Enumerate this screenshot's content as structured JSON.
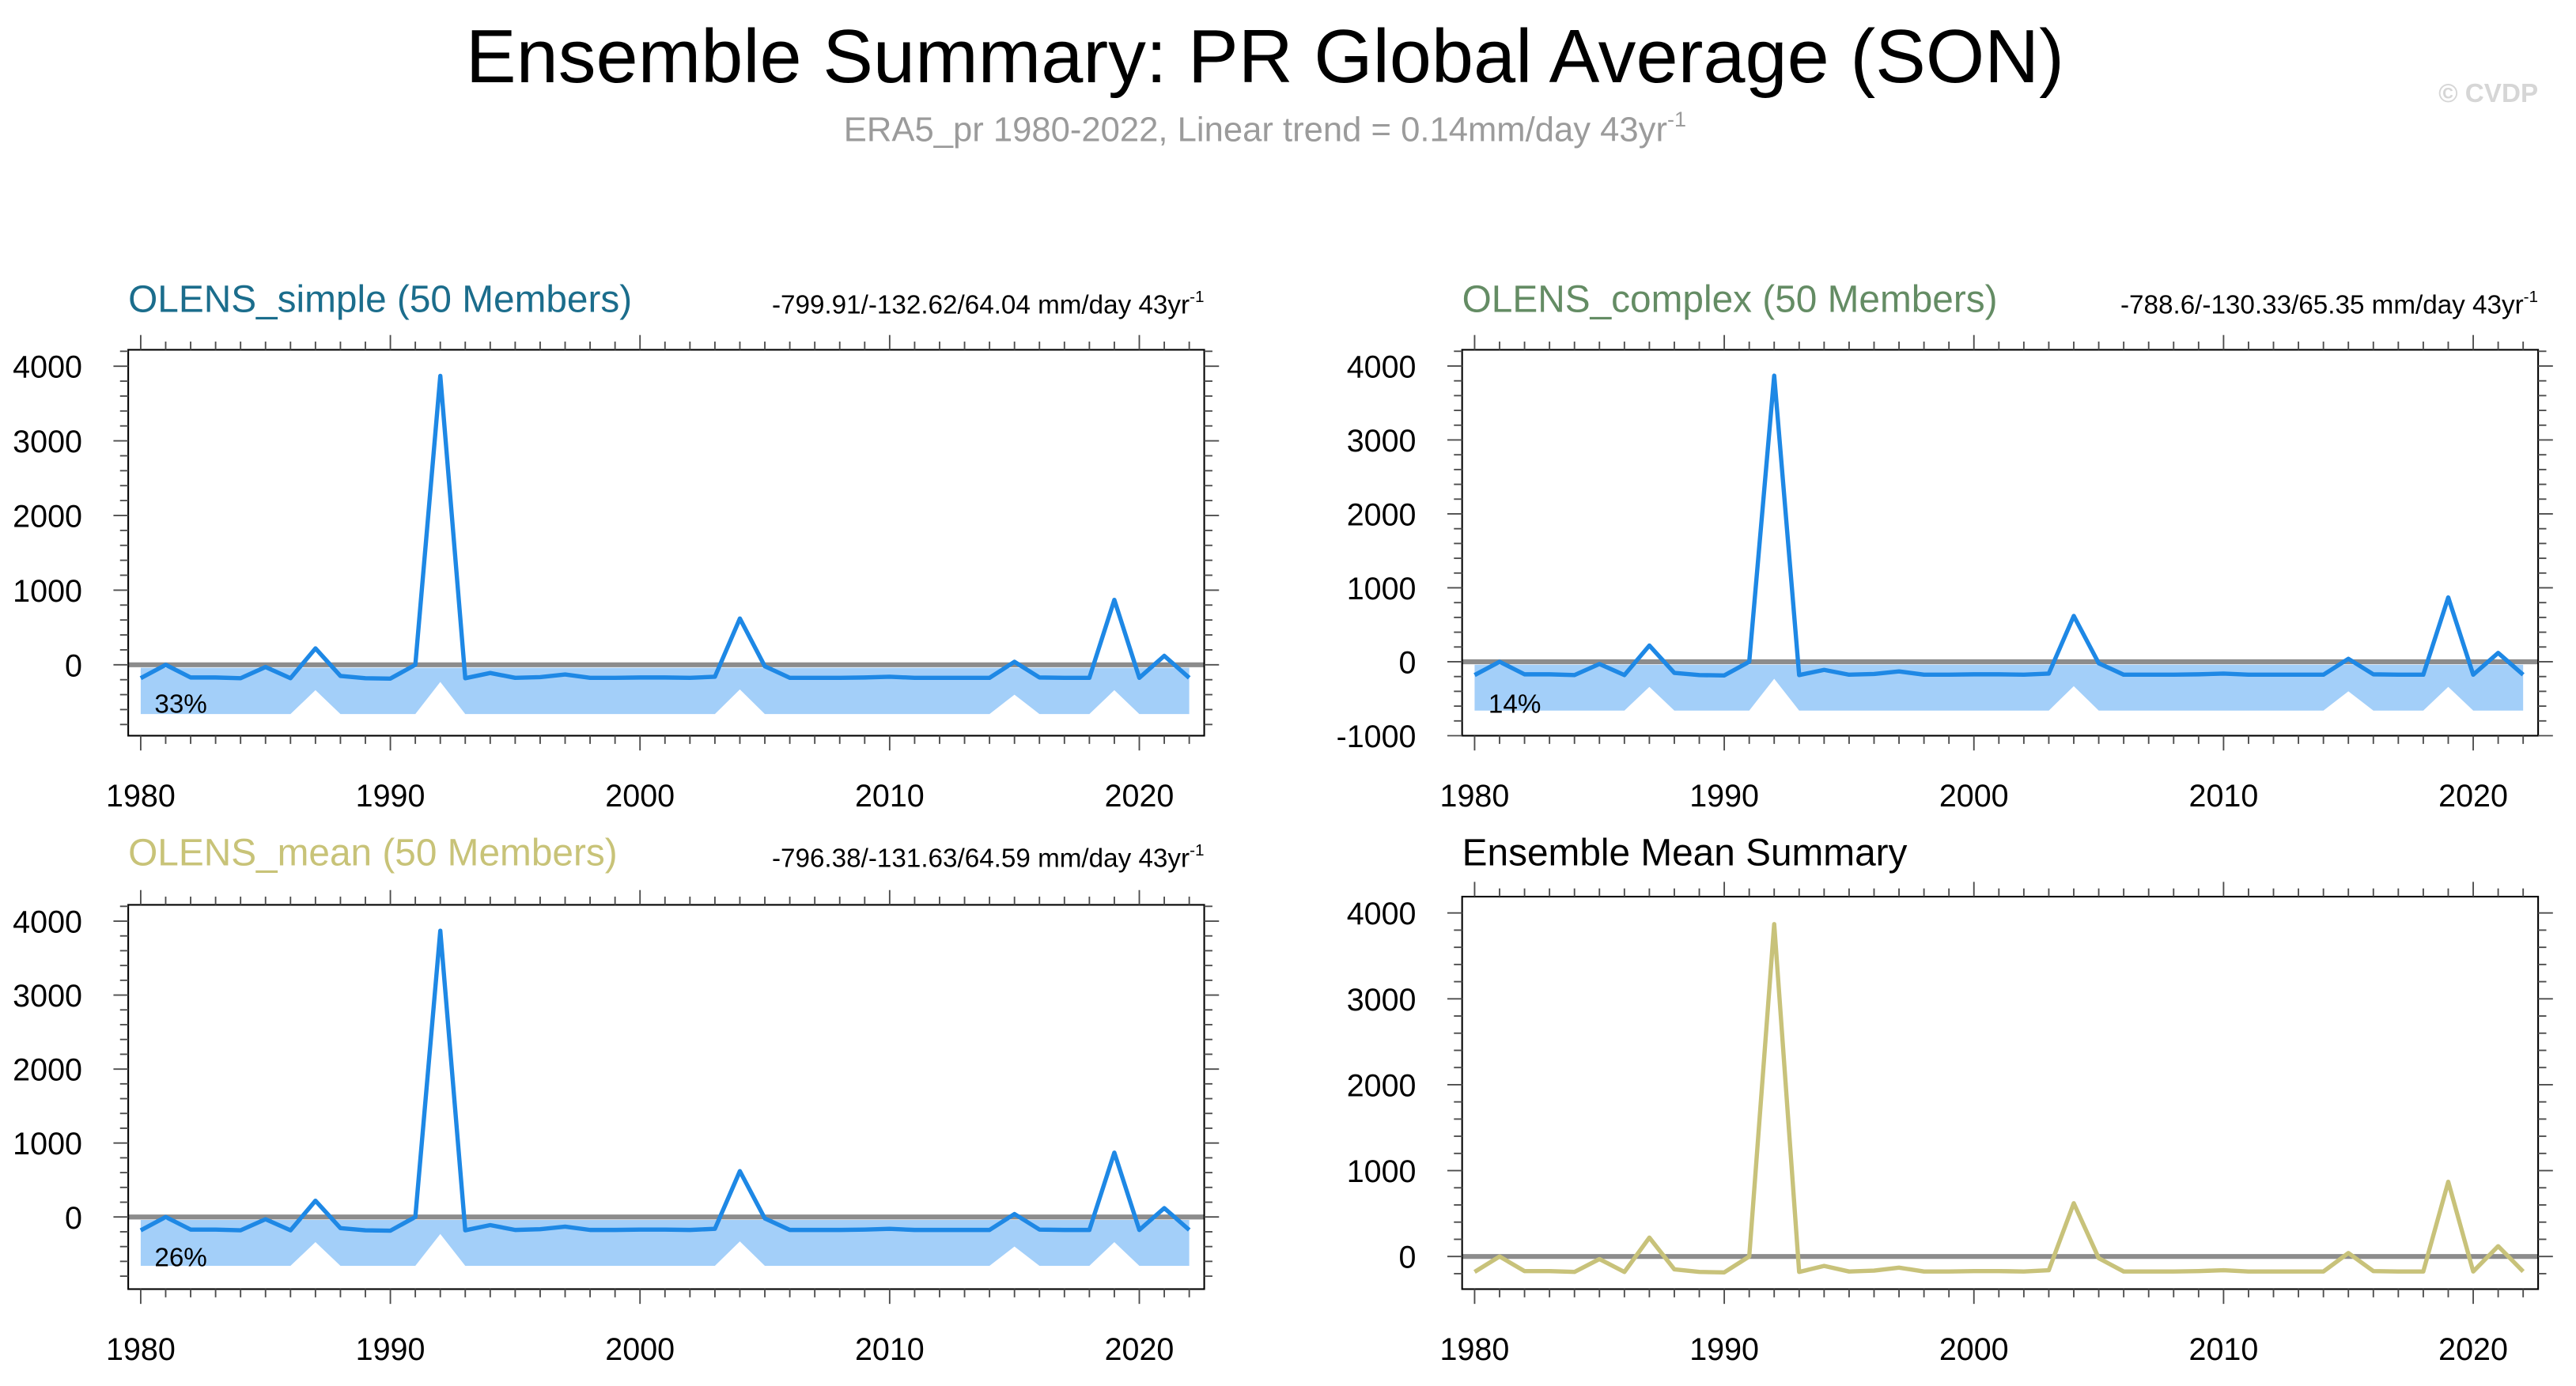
{
  "page": {
    "title": "Ensemble Summary: PR Global Average (SON)",
    "subtitle": "ERA5_pr 1980-2022, Linear trend = 0.14mm/day 43yr",
    "subtitle_sup": "-1",
    "watermark": "© CVDP"
  },
  "colors": {
    "zero_line": "#8c8c8c",
    "axis": "#000000",
    "tick": "#4d4d4d",
    "subtitle": "#9b9b9b",
    "watermark": "#d6d6d6"
  },
  "chart_data": [
    {
      "type": "line",
      "title": "OLENS_simple (50 Members)",
      "title_color": "#1b6d8c",
      "stats": "-799.91/-132.62/64.04 mm/day 43yr",
      "stats_sup": "-1",
      "percent": "33%",
      "x": [
        1980,
        1981,
        1982,
        1983,
        1984,
        1985,
        1986,
        1987,
        1988,
        1989,
        1990,
        1991,
        1992,
        1993,
        1994,
        1995,
        1996,
        1997,
        1998,
        1999,
        2000,
        2001,
        2002,
        2003,
        2004,
        2005,
        2006,
        2007,
        2008,
        2009,
        2010,
        2011,
        2012,
        2013,
        2014,
        2015,
        2016,
        2017,
        2018,
        2019,
        2020,
        2021,
        2022
      ],
      "series": [
        {
          "color": "#1e88e5",
          "values": [
            -180,
            0,
            -170,
            -170,
            -180,
            -30,
            -180,
            220,
            -150,
            -180,
            -185,
            0,
            3870,
            -180,
            -110,
            -175,
            -165,
            -130,
            -175,
            -175,
            -170,
            -170,
            -175,
            -160,
            620,
            -20,
            -175,
            -175,
            -175,
            -170,
            -160,
            -175,
            -175,
            -175,
            -175,
            40,
            -170,
            -175,
            -175,
            870,
            -175,
            120,
            -175
          ]
        }
      ],
      "band": {
        "color": "#a3cff9",
        "upper": [
          -40,
          -40,
          -40,
          -40,
          -40,
          -40,
          -40,
          -40,
          -40,
          -40,
          -40,
          -40,
          -40,
          -40,
          -40,
          -40,
          -40,
          -40,
          -40,
          -40,
          -40,
          -40,
          -40,
          -40,
          -40,
          -40,
          -40,
          -40,
          -40,
          -40,
          -40,
          -40,
          -40,
          -40,
          -40,
          -40,
          -40,
          -40,
          -40,
          -40,
          -40,
          -40,
          -40
        ],
        "lower": [
          -660,
          -660,
          -660,
          -660,
          -660,
          -660,
          -660,
          -340,
          -660,
          -660,
          -660,
          -660,
          -230,
          -660,
          -660,
          -660,
          -660,
          -660,
          -660,
          -660,
          -660,
          -660,
          -660,
          -660,
          -330,
          -660,
          -660,
          -660,
          -660,
          -660,
          -660,
          -660,
          -660,
          -660,
          -660,
          -400,
          -660,
          -660,
          -660,
          -340,
          -660,
          -660,
          -660
        ]
      },
      "xlim": [
        1979.5,
        2022.6
      ],
      "ylim": [
        -950,
        4220
      ],
      "xticks": [
        1980,
        1990,
        2000,
        2010,
        2020
      ],
      "yticks": [
        0,
        1000,
        2000,
        3000,
        4000
      ]
    },
    {
      "type": "line",
      "title": "OLENS_complex (50 Members)",
      "title_color": "#648c64",
      "stats": "-788.6/-130.33/65.35 mm/day 43yr",
      "stats_sup": "-1",
      "percent": "14%",
      "x": [
        1980,
        1981,
        1982,
        1983,
        1984,
        1985,
        1986,
        1987,
        1988,
        1989,
        1990,
        1991,
        1992,
        1993,
        1994,
        1995,
        1996,
        1997,
        1998,
        1999,
        2000,
        2001,
        2002,
        2003,
        2004,
        2005,
        2006,
        2007,
        2008,
        2009,
        2010,
        2011,
        2012,
        2013,
        2014,
        2015,
        2016,
        2017,
        2018,
        2019,
        2020,
        2021,
        2022
      ],
      "series": [
        {
          "color": "#1e88e5",
          "values": [
            -180,
            0,
            -170,
            -170,
            -180,
            -30,
            -180,
            220,
            -150,
            -180,
            -185,
            0,
            3870,
            -180,
            -110,
            -175,
            -165,
            -130,
            -175,
            -175,
            -170,
            -170,
            -175,
            -160,
            620,
            -20,
            -175,
            -175,
            -175,
            -170,
            -160,
            -175,
            -175,
            -175,
            -175,
            40,
            -170,
            -175,
            -175,
            870,
            -175,
            120,
            -175
          ]
        }
      ],
      "band": {
        "color": "#a3cff9",
        "upper": [
          -40,
          -40,
          -40,
          -40,
          -40,
          -40,
          -40,
          -40,
          -40,
          -40,
          -40,
          -40,
          -40,
          -40,
          -40,
          -40,
          -40,
          -40,
          -40,
          -40,
          -40,
          -40,
          -40,
          -40,
          -40,
          -40,
          -40,
          -40,
          -40,
          -40,
          -40,
          -40,
          -40,
          -40,
          -40,
          -40,
          -40,
          -40,
          -40,
          -40,
          -40,
          -40,
          -40
        ],
        "lower": [
          -660,
          -660,
          -660,
          -660,
          -660,
          -660,
          -660,
          -340,
          -660,
          -660,
          -660,
          -660,
          -230,
          -660,
          -660,
          -660,
          -660,
          -660,
          -660,
          -660,
          -660,
          -660,
          -660,
          -660,
          -330,
          -660,
          -660,
          -660,
          -660,
          -660,
          -660,
          -660,
          -660,
          -660,
          -660,
          -400,
          -660,
          -660,
          -660,
          -340,
          -660,
          -660,
          -660
        ]
      },
      "xlim": [
        1979.5,
        2022.6
      ],
      "ylim": [
        -1000,
        4220
      ],
      "xticks": [
        1980,
        1990,
        2000,
        2010,
        2020
      ],
      "yticks": [
        -1000,
        0,
        1000,
        2000,
        3000,
        4000
      ]
    },
    {
      "type": "line",
      "title": "OLENS_mean (50 Members)",
      "title_color": "#c8c378",
      "stats": "-796.38/-131.63/64.59 mm/day 43yr",
      "stats_sup": "-1",
      "percent": "26%",
      "x": [
        1980,
        1981,
        1982,
        1983,
        1984,
        1985,
        1986,
        1987,
        1988,
        1989,
        1990,
        1991,
        1992,
        1993,
        1994,
        1995,
        1996,
        1997,
        1998,
        1999,
        2000,
        2001,
        2002,
        2003,
        2004,
        2005,
        2006,
        2007,
        2008,
        2009,
        2010,
        2011,
        2012,
        2013,
        2014,
        2015,
        2016,
        2017,
        2018,
        2019,
        2020,
        2021,
        2022
      ],
      "series": [
        {
          "color": "#1e88e5",
          "values": [
            -180,
            0,
            -170,
            -170,
            -180,
            -30,
            -180,
            220,
            -150,
            -180,
            -185,
            0,
            3870,
            -180,
            -110,
            -175,
            -165,
            -130,
            -175,
            -175,
            -170,
            -170,
            -175,
            -160,
            620,
            -20,
            -175,
            -175,
            -175,
            -170,
            -160,
            -175,
            -175,
            -175,
            -175,
            40,
            -170,
            -175,
            -175,
            870,
            -175,
            120,
            -175
          ]
        }
      ],
      "band": {
        "color": "#a3cff9",
        "upper": [
          -40,
          -40,
          -40,
          -40,
          -40,
          -40,
          -40,
          -40,
          -40,
          -40,
          -40,
          -40,
          -40,
          -40,
          -40,
          -40,
          -40,
          -40,
          -40,
          -40,
          -40,
          -40,
          -40,
          -40,
          -40,
          -40,
          -40,
          -40,
          -40,
          -40,
          -40,
          -40,
          -40,
          -40,
          -40,
          -40,
          -40,
          -40,
          -40,
          -40,
          -40,
          -40,
          -40
        ],
        "lower": [
          -660,
          -660,
          -660,
          -660,
          -660,
          -660,
          -660,
          -340,
          -660,
          -660,
          -660,
          -660,
          -230,
          -660,
          -660,
          -660,
          -660,
          -660,
          -660,
          -660,
          -660,
          -660,
          -660,
          -660,
          -330,
          -660,
          -660,
          -660,
          -660,
          -660,
          -660,
          -660,
          -660,
          -660,
          -660,
          -400,
          -660,
          -660,
          -660,
          -340,
          -660,
          -660,
          -660
        ]
      },
      "xlim": [
        1979.5,
        2022.6
      ],
      "ylim": [
        -975,
        4220
      ],
      "xticks": [
        1980,
        1990,
        2000,
        2010,
        2020
      ],
      "yticks": [
        0,
        1000,
        2000,
        3000,
        4000
      ]
    },
    {
      "type": "line",
      "title": "Ensemble Mean Summary",
      "title_color": "#000000",
      "x": [
        1980,
        1981,
        1982,
        1983,
        1984,
        1985,
        1986,
        1987,
        1988,
        1989,
        1990,
        1991,
        1992,
        1993,
        1994,
        1995,
        1996,
        1997,
        1998,
        1999,
        2000,
        2001,
        2002,
        2003,
        2004,
        2005,
        2006,
        2007,
        2008,
        2009,
        2010,
        2011,
        2012,
        2013,
        2014,
        2015,
        2016,
        2017,
        2018,
        2019,
        2020,
        2021,
        2022
      ],
      "series": [
        {
          "color": "#c8c27a",
          "values": [
            -180,
            0,
            -170,
            -170,
            -180,
            -30,
            -180,
            220,
            -150,
            -180,
            -185,
            0,
            3870,
            -180,
            -110,
            -175,
            -165,
            -130,
            -175,
            -175,
            -170,
            -170,
            -175,
            -160,
            620,
            -20,
            -175,
            -175,
            -175,
            -170,
            -160,
            -175,
            -175,
            -175,
            -175,
            40,
            -170,
            -175,
            -175,
            870,
            -175,
            120,
            -175
          ]
        }
      ],
      "xlim": [
        1979.5,
        2022.6
      ],
      "ylim": [
        -380,
        4190
      ],
      "xticks": [
        1980,
        1990,
        2000,
        2010,
        2020
      ],
      "yticks": [
        0,
        1000,
        2000,
        3000,
        4000
      ]
    }
  ]
}
